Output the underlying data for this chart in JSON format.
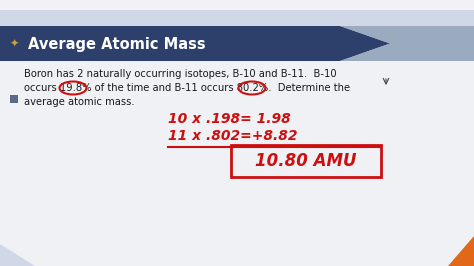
{
  "title": "Average Atomic Mass",
  "title_bg_color": "#2d3f6b",
  "title_text_color": "#ffffff",
  "slide_bg_color": "#c8cdd8",
  "content_bg_color": "#f0f1f5",
  "handwritten_line1": "10 x .198= 1.98",
  "handwritten_line2": "11 x .802=+8.82",
  "handwritten_box": "10.80 AMU",
  "handwritten_color": "#cc1010",
  "bullet_color": "#5a6a8a",
  "header_accent_color": "#b0bcd0",
  "header_light_color": "#d0d8e8",
  "bottom_accent_color": "#e06818",
  "top_bar_color": "#e0e4ee",
  "very_top_color": "#f0f2f6",
  "arrow_dark": "#2d3f6b",
  "arrow_light": "#9aaabf"
}
